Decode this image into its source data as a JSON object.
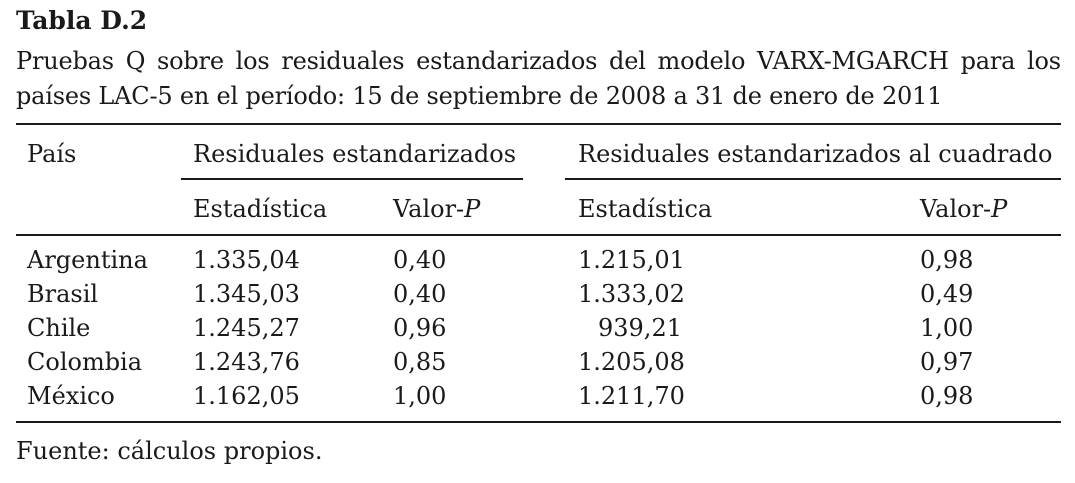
{
  "table": {
    "label": "Tabla D.2",
    "caption_line1_words": [
      "Pruebas",
      "Q",
      "sobre",
      "los",
      "residuales",
      "estandarizados",
      "del",
      "modelo",
      "VARX-MGARCH",
      "para",
      "los"
    ],
    "caption_line2": "países LAC-5 en el período: 15 de septiembre de 2008 a 31 de enero de 2011",
    "headers": {
      "country": "País",
      "group1": "Residuales estandarizados",
      "group2": "Residuales estandarizados al cuadrado",
      "statistic": "Estadística",
      "pvalue_prefix": "Valor-",
      "pvalue_letter": "P"
    },
    "rows": [
      {
        "country": "Argentina",
        "stat1": "1.335,04",
        "p1": "0,40",
        "stat2": "1.215,01",
        "p2": "0,98"
      },
      {
        "country": "Brasil",
        "stat1": "1.345,03",
        "p1": "0,40",
        "stat2": "1.333,02",
        "p2": "0,49"
      },
      {
        "country": "Chile",
        "stat1": "1.245,27",
        "p1": "0,96",
        "stat2": "939,21",
        "p2": "1,00"
      },
      {
        "country": "Colombia",
        "stat1": "1.243,76",
        "p1": "0,85",
        "stat2": "1.205,08",
        "p2": "0,97"
      },
      {
        "country": "México",
        "stat1": "1.162,05",
        "p1": "1,00",
        "stat2": "1.211,70",
        "p2": "0,98"
      }
    ],
    "source": "Fuente: cálculos propios."
  }
}
